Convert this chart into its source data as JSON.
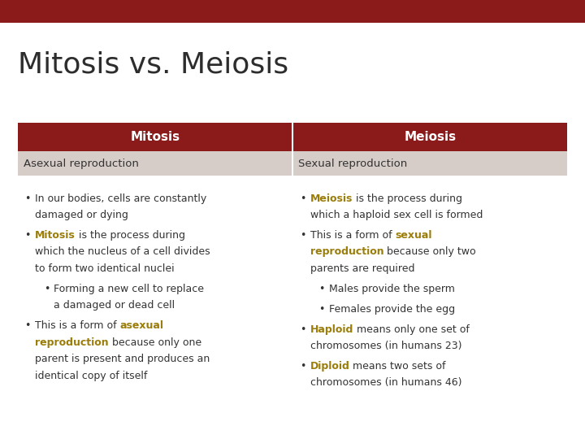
{
  "title": "Mitosis vs. Meiosis",
  "title_fontsize": 26,
  "title_color": "#2d2d2d",
  "background_color": "#ffffff",
  "top_bar_color": "#8b1a1a",
  "header_row_color": "#8b1a1a",
  "second_row_color": "#d6ccc8",
  "col1_header": "Mitosis",
  "col2_header": "Meiosis",
  "col1_subheader": "Asexual reproduction",
  "col2_subheader": "Sexual reproduction",
  "header_text_color": "#ffffff",
  "subheader_text_color": "#333333",
  "gold": "#9a7d0a",
  "dark": "#333333",
  "figsize": [
    7.2,
    5.4
  ],
  "dpi": 100
}
